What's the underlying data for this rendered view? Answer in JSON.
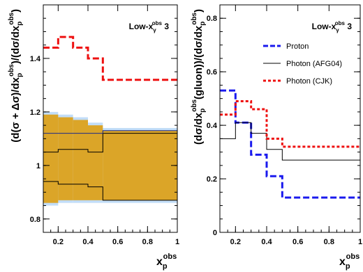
{
  "chart_data": [
    {
      "type": "line",
      "title": "Low-x",
      "title_sub": "γ",
      "title_sup": "obs",
      "title_tail": " 3",
      "ylabel_main": "(d(σ + Δσ)/dx",
      "ylabel_mid": ")/(dσ/dx",
      "ylabel_end": ")",
      "ylabel_sub": "p",
      "ylabel_sup": "obs",
      "xlabel_main": "x",
      "xlabel_sub": "p",
      "xlabel_sup": "obs",
      "xlim": [
        0.1,
        1.0
      ],
      "ylim": [
        0.75,
        1.6
      ],
      "xticks": [
        0.2,
        0.4,
        0.6,
        0.8,
        1.0
      ],
      "xtick_labels": [
        "0.2",
        "0.4",
        "0.6",
        "0.8",
        "1"
      ],
      "yticks": [
        0.8,
        1.0,
        1.2,
        1.4
      ],
      "ytick_labels": [
        "0.8",
        "1",
        "1.2",
        "1.4"
      ],
      "bin_edges": [
        0.1,
        0.2,
        0.3,
        0.4,
        0.5,
        1.0
      ],
      "bands": [
        {
          "name": "outer band",
          "color": "#c2ddf7",
          "lower": [
            0.85,
            0.86,
            0.86,
            0.86,
            0.86
          ],
          "upper": [
            1.2,
            1.19,
            1.18,
            1.16,
            1.14
          ]
        },
        {
          "name": "inner band",
          "color": "#dba528",
          "lower": [
            0.86,
            0.87,
            0.87,
            0.87,
            0.87
          ],
          "upper": [
            1.19,
            1.18,
            1.17,
            1.15,
            1.13
          ]
        }
      ],
      "series": [
        {
          "style": "dashed",
          "color": "#ee1111",
          "values": [
            1.44,
            1.48,
            1.44,
            1.4,
            1.32
          ]
        },
        {
          "style": "solid-thin",
          "color": "#000000",
          "values": [
            1.05,
            1.06,
            1.06,
            1.05,
            1.12
          ]
        },
        {
          "style": "solid-thin",
          "color": "#000000",
          "values": [
            0.94,
            0.93,
            0.93,
            0.92,
            0.87
          ]
        },
        {
          "style": "solid-thin",
          "color": "#1a2a8a",
          "values": [
            1.12,
            1.12,
            1.12,
            1.12,
            1.13
          ]
        }
      ]
    },
    {
      "type": "line",
      "title": "Low-x",
      "title_sub": "γ",
      "title_sup": "obs",
      "title_tail": " 3",
      "ylabel_main": "(dσ/dx",
      "ylabel_mid": "(gluon))/(dσ/dx",
      "ylabel_end": ")",
      "ylabel_sub": "p",
      "ylabel_sup": "obs",
      "xlabel_main": "x",
      "xlabel_sub": "p",
      "xlabel_sup": "obs",
      "xlim": [
        0.1,
        1.0
      ],
      "ylim": [
        0.0,
        0.85
      ],
      "xticks": [
        0.2,
        0.4,
        0.6,
        0.8,
        1.0
      ],
      "xtick_labels": [
        "0.2",
        "0.4",
        "0.6",
        "0.8",
        "1"
      ],
      "yticks": [
        0.0,
        0.2,
        0.4,
        0.6,
        0.8
      ],
      "ytick_labels": [
        "0",
        "0.2",
        "0.4",
        "0.6",
        "0.8"
      ],
      "bin_edges": [
        0.1,
        0.2,
        0.3,
        0.4,
        0.5,
        1.0
      ],
      "legend_position": "top-center",
      "series": [
        {
          "name": "Proton",
          "style": "dashed",
          "color": "#1a1aee",
          "values": [
            0.53,
            0.41,
            0.29,
            0.21,
            0.13
          ]
        },
        {
          "name": "Photon (AFG04)",
          "style": "solid-thin",
          "color": "#000000",
          "values": [
            0.35,
            0.41,
            0.37,
            0.31,
            0.27
          ]
        },
        {
          "name": "Photon (CJK)",
          "style": "dotted",
          "color": "#ee1111",
          "values": [
            0.44,
            0.49,
            0.46,
            0.35,
            0.32
          ]
        }
      ]
    }
  ]
}
